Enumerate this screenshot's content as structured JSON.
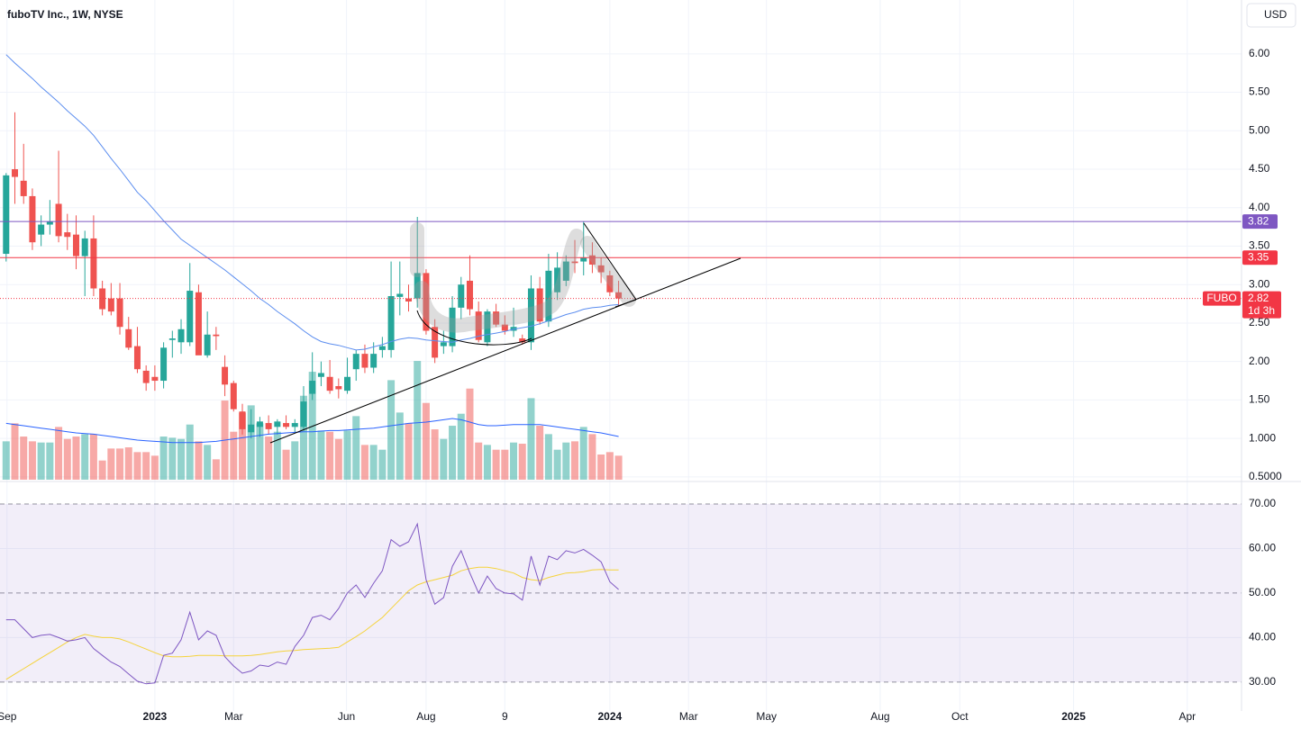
{
  "chart_data": {
    "type": "candlestick",
    "title": "fuboTV Inc., 1W, NYSE",
    "currency": "USD",
    "up_color": "#26a69a",
    "down_color": "#ef5350",
    "x": [
      -17,
      -16,
      -15,
      -14,
      -13,
      -12,
      -11,
      -10,
      -9,
      -8,
      -7,
      -6,
      -5,
      -4,
      -3,
      -2,
      -1,
      0,
      1,
      2,
      3,
      4,
      5,
      6,
      7,
      8,
      9,
      10,
      11,
      12,
      13,
      14,
      15,
      16,
      17,
      18,
      19,
      20,
      21,
      22,
      23,
      24,
      25,
      26,
      27,
      28,
      29,
      30,
      31,
      32,
      33,
      34,
      35,
      36,
      37,
      38,
      39,
      40,
      41,
      42,
      43,
      44,
      45,
      46,
      47,
      48,
      49,
      50,
      51,
      52,
      53
    ],
    "open": [
      3.4,
      4.5,
      4.35,
      4.15,
      3.65,
      3.78,
      4.05,
      3.68,
      3.65,
      3.37,
      3.6,
      2.95,
      2.82,
      2.82,
      2.42,
      2.2,
      1.88,
      1.8,
      1.75,
      2.28,
      2.25,
      2.25,
      2.9,
      2.08,
      2.35,
      1.93,
      1.72,
      1.35,
      1.08,
      1.15,
      1.2,
      1.15,
      1.2,
      1.15,
      1.15,
      1.58,
      1.8,
      1.8,
      1.68,
      1.62,
      1.9,
      2.1,
      1.92,
      2.15,
      2.15,
      2.84,
      2.82,
      2.82,
      3.15,
      2.45,
      2.2,
      2.2,
      2.7,
      3.05,
      2.65,
      2.25,
      2.65,
      2.48,
      2.4,
      2.3,
      2.25,
      2.95,
      2.52,
      2.9,
      3.05,
      3.3,
      3.3,
      3.38,
      3.25,
      3.12,
      2.9
    ],
    "high": [
      4.45,
      5.24,
      4.83,
      4.25,
      3.9,
      4.1,
      4.74,
      3.92,
      3.9,
      3.7,
      3.9,
      3.05,
      3.02,
      3.02,
      2.58,
      2.45,
      1.95,
      1.95,
      2.25,
      2.4,
      2.55,
      3.28,
      3.0,
      2.65,
      2.45,
      2.08,
      1.75,
      1.45,
      1.38,
      1.28,
      1.3,
      1.25,
      1.3,
      1.25,
      1.68,
      2.12,
      2.0,
      2.02,
      1.78,
      2.05,
      2.15,
      2.22,
      2.25,
      2.32,
      3.3,
      3.3,
      3.0,
      3.88,
      3.2,
      2.55,
      2.4,
      2.85,
      3.1,
      3.38,
      2.78,
      2.68,
      2.75,
      2.6,
      2.7,
      2.35,
      3.12,
      3.1,
      3.4,
      3.42,
      3.38,
      3.58,
      3.82,
      3.55,
      3.35,
      3.18,
      3.05
    ],
    "low": [
      3.3,
      4.05,
      4.05,
      3.45,
      3.5,
      3.65,
      3.55,
      3.45,
      3.2,
      2.85,
      2.85,
      2.6,
      2.6,
      2.35,
      2.15,
      1.85,
      1.62,
      1.62,
      1.65,
      2.05,
      2.1,
      2.2,
      2.1,
      2.05,
      2.15,
      1.55,
      1.35,
      1.05,
      1.0,
      1.02,
      1.05,
      1.05,
      1.12,
      1.08,
      1.1,
      1.5,
      1.68,
      1.58,
      1.52,
      1.58,
      1.75,
      1.85,
      1.85,
      2.05,
      2.05,
      2.6,
      2.65,
      2.7,
      2.35,
      1.98,
      2.1,
      2.12,
      2.55,
      2.6,
      2.25,
      2.2,
      2.45,
      2.35,
      2.32,
      2.22,
      2.15,
      2.48,
      2.45,
      2.8,
      2.98,
      3.15,
      3.12,
      3.15,
      3.02,
      2.85,
      2.72
    ],
    "close": [
      4.42,
      4.4,
      4.15,
      3.55,
      3.78,
      3.82,
      3.63,
      3.62,
      3.37,
      3.6,
      2.95,
      2.68,
      2.65,
      2.45,
      2.18,
      1.9,
      1.72,
      1.75,
      2.18,
      2.3,
      2.42,
      2.92,
      2.08,
      2.35,
      2.33,
      1.7,
      1.38,
      1.12,
      1.18,
      1.22,
      1.12,
      1.22,
      1.15,
      1.2,
      1.48,
      1.75,
      1.85,
      1.62,
      1.64,
      1.8,
      2.1,
      1.92,
      2.1,
      2.2,
      2.85,
      2.88,
      2.78,
      3.15,
      2.4,
      2.05,
      2.25,
      2.7,
      3.0,
      2.68,
      2.28,
      2.65,
      2.48,
      2.4,
      2.45,
      2.25,
      2.95,
      2.52,
      3.18,
      3.22,
      3.3,
      3.28,
      3.35,
      3.26,
      3.16,
      2.9,
      2.82
    ],
    "volume": [
      32,
      47,
      36,
      32,
      31,
      31,
      44,
      34,
      36,
      38,
      38,
      16,
      26,
      26,
      27,
      23,
      23,
      20,
      36,
      35,
      34,
      46,
      32,
      29,
      17,
      66,
      40,
      56,
      62,
      47,
      36,
      40,
      25,
      32,
      70,
      90,
      41,
      40,
      34,
      41,
      53,
      29,
      29,
      25,
      83,
      56,
      47,
      99,
      64,
      42,
      34,
      45,
      55,
      76,
      31,
      29,
      25,
      25,
      31,
      30,
      68,
      45,
      38,
      25,
      31,
      32,
      44,
      38,
      21,
      23,
      20
    ],
    "volume_ylim": [
      0,
      400
    ],
    "volume_ma": [
      47,
      46,
      45,
      44,
      43,
      42,
      41,
      40,
      39,
      38.5,
      38,
      37,
      36,
      35,
      34,
      33,
      32.5,
      32,
      31.5,
      31,
      31,
      31,
      31,
      31.5,
      32,
      33,
      34,
      35,
      36,
      37,
      38,
      38.5,
      39,
      39.5,
      40,
      40,
      40.5,
      41,
      41,
      41.5,
      42,
      42.5,
      43,
      44,
      45,
      46,
      47,
      47.5,
      48,
      49,
      50,
      51,
      50,
      48,
      46,
      45,
      45,
      45.5,
      46,
      46,
      46,
      46,
      45,
      44,
      43,
      42,
      41,
      40,
      39,
      37.5,
      36
    ],
    "volume_ma_color": "#2962ff",
    "ma": [
      5.99,
      5.88,
      5.78,
      5.68,
      5.57,
      5.47,
      5.37,
      5.26,
      5.16,
      5.06,
      4.94,
      4.79,
      4.64,
      4.5,
      4.35,
      4.2,
      4.09,
      3.96,
      3.83,
      3.71,
      3.59,
      3.51,
      3.43,
      3.35,
      3.27,
      3.19,
      3.1,
      3.01,
      2.92,
      2.82,
      2.74,
      2.65,
      2.57,
      2.49,
      2.4,
      2.32,
      2.26,
      2.23,
      2.21,
      2.18,
      2.15,
      2.16,
      2.19,
      2.22,
      2.26,
      2.29,
      2.31,
      2.3,
      2.28,
      2.27,
      2.26,
      2.25,
      2.28,
      2.3,
      2.33,
      2.35,
      2.37,
      2.39,
      2.42,
      2.44,
      2.46,
      2.49,
      2.53,
      2.57,
      2.61,
      2.64,
      2.68,
      2.7,
      2.71,
      2.73,
      2.74
    ],
    "ma_color": "#5b8def",
    "xlim": [
      -17.7,
      124.2
    ],
    "xticks": [
      {
        "value": -16.9,
        "label": "Sep"
      },
      {
        "value": 0,
        "label": "2023"
      },
      {
        "value": 9,
        "label": "Mar"
      },
      {
        "value": 21.9,
        "label": "Jun"
      },
      {
        "value": 31,
        "label": "Aug"
      },
      {
        "value": 40,
        "label": "9"
      },
      {
        "value": 52,
        "label": "2024"
      },
      {
        "value": 61,
        "label": "Mar"
      },
      {
        "value": 69.9,
        "label": "May"
      },
      {
        "value": 82.9,
        "label": "Aug"
      },
      {
        "value": 92,
        "label": "Oct"
      },
      {
        "value": 105,
        "label": "2025"
      },
      {
        "value": 118,
        "label": "Apr"
      }
    ],
    "ylim": [
      0.44,
      6.7
    ],
    "yticks": [
      {
        "value": 0.5,
        "label": "0.5000"
      },
      {
        "value": 1,
        "label": "1.000"
      },
      {
        "value": 1.5,
        "label": "1.50"
      },
      {
        "value": 2,
        "label": "2.00"
      },
      {
        "value": 2.5,
        "label": "2.50"
      },
      {
        "value": 3,
        "label": "3.00"
      },
      {
        "value": 3.5,
        "label": "3.50"
      },
      {
        "value": 4,
        "label": "4.00"
      },
      {
        "value": 4.5,
        "label": "4.50"
      },
      {
        "value": 5,
        "label": "5.00"
      },
      {
        "value": 5.5,
        "label": "5.50"
      },
      {
        "value": 6,
        "label": "6.00"
      }
    ],
    "grid": true,
    "lines": [
      {
        "value": 3.82,
        "color": "#7e57c2"
      },
      {
        "value": 3.35,
        "color": "#f23645"
      }
    ],
    "last_price": {
      "symbol": "FUBO",
      "value": 2.82,
      "countdown": "1d 3h",
      "color": "#f23645"
    },
    "rsi": {
      "values": [
        44,
        44,
        42,
        40,
        40.5,
        40.7,
        40,
        39.2,
        39.5,
        40,
        37.5,
        36,
        34.5,
        33.5,
        31.8,
        30.2,
        29.6,
        29.8,
        36,
        36.5,
        39.5,
        45.7,
        39.5,
        41.5,
        40.5,
        35.7,
        33.6,
        32,
        32.5,
        33.8,
        33.5,
        34.5,
        34,
        38,
        40.5,
        44.5,
        45,
        44,
        46.5,
        50,
        51.8,
        49,
        52.2,
        55,
        62,
        60.5,
        61.5,
        65.5,
        53,
        47.5,
        49,
        56,
        59.5,
        54.5,
        50,
        53.8,
        51,
        50,
        49.8,
        48.4,
        58.3,
        51.8,
        58.3,
        57.5,
        59.5,
        59,
        59.8,
        58.5,
        57,
        52.5,
        50.8
      ],
      "ma": [
        30.6,
        31.8,
        33,
        34.2,
        35.4,
        36.6,
        37.8,
        39,
        40,
        40.7,
        40.3,
        40,
        40,
        39.7,
        39,
        38.2,
        37.4,
        36.6,
        35.9,
        35.7,
        35.7,
        35.8,
        36,
        36,
        36,
        35.9,
        35.9,
        35.9,
        36,
        36.2,
        36.5,
        36.8,
        37,
        37.1,
        37.3,
        37.4,
        37.5,
        37.6,
        37.8,
        39,
        40.2,
        41.5,
        43,
        44.5,
        46.5,
        48.5,
        50.5,
        51.8,
        52.5,
        53,
        53.5,
        54,
        55,
        55.5,
        55.8,
        55.8,
        55.5,
        55,
        54.5,
        53.5,
        53,
        52.8,
        53.5,
        54,
        54.5,
        54.6,
        54.8,
        55.2,
        55.3,
        55.2,
        55.2
      ],
      "color": "#7e57c2",
      "ma_color": "#f5d33b",
      "band": [
        30,
        70
      ],
      "ylim": [
        23.5,
        75.05
      ],
      "yticks": [
        {
          "value": 30,
          "label": "30.00"
        },
        {
          "value": 40,
          "label": "40.00"
        },
        {
          "value": 50,
          "label": "50.00"
        },
        {
          "value": 60,
          "label": "60.00"
        },
        {
          "value": 70,
          "label": "70.00"
        }
      ]
    }
  }
}
